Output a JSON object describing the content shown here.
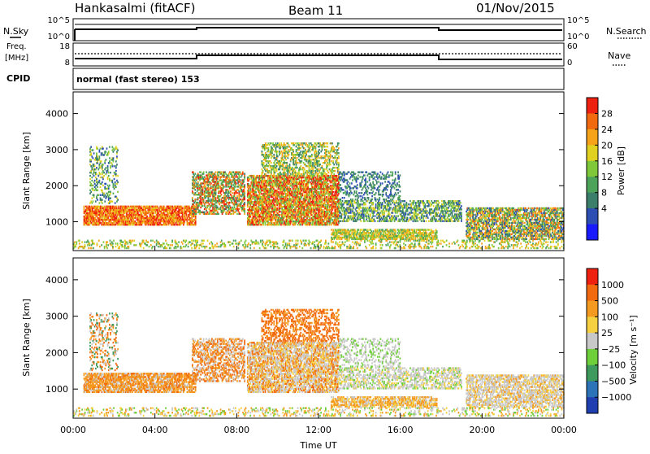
{
  "header": {
    "station": "Hankasalmi (fitACF)",
    "beam": "Beam 11",
    "date": "01/Nov/2015"
  },
  "strip_panels": {
    "nsky_label": "N.Sky",
    "nsky_ticks": [
      "10^5",
      "10^0"
    ],
    "nsearch_label": "N.Search",
    "nsearch_ticks": [
      "10^5",
      "10^0"
    ],
    "freq_label_1": "Freq.",
    "freq_label_2": "[MHz]",
    "freq_ticks": [
      "18",
      "8"
    ],
    "nave_label": "Nave",
    "nave_ticks": [
      "60",
      "0"
    ],
    "cpid_label": "CPID",
    "cpid_text": "normal (fast stereo) 153"
  },
  "chart_data": [
    {
      "type": "heatmap",
      "name": "power-panel",
      "ylabel": "Slant Range [km]",
      "y_ticks": [
        "4000",
        "3000",
        "2000",
        "1000"
      ],
      "ylim": [
        200,
        4600
      ],
      "xlim": [
        "00:00",
        "24:00"
      ],
      "colorbar": {
        "label": "Power [dB]",
        "ticks": [
          "28",
          "24",
          "20",
          "16",
          "12",
          "8",
          "4"
        ],
        "colors": [
          "#1a1aff",
          "#2d4fb3",
          "#3b7f6b",
          "#4ea35a",
          "#7ec83a",
          "#e0d020",
          "#f7a31a",
          "#f26a10",
          "#ee2010"
        ]
      }
    },
    {
      "type": "heatmap",
      "name": "velocity-panel",
      "ylabel": "Slant Range [km]",
      "y_ticks": [
        "4000",
        "3000",
        "2000",
        "1000"
      ],
      "ylim": [
        200,
        4600
      ],
      "xlim": [
        "00:00",
        "24:00"
      ],
      "xlabel": "Time UT",
      "x_ticks": [
        "00:00",
        "04:00",
        "08:00",
        "12:00",
        "16:00",
        "20:00",
        "00:00"
      ],
      "colorbar": {
        "label": "Velocity [m s⁻¹]",
        "ticks": [
          "1000",
          "500",
          "100",
          "25",
          "−25",
          "−100",
          "−500",
          "−1000"
        ],
        "colors": [
          "#1f3fb0",
          "#2d73b8",
          "#3d9a5c",
          "#6fcf3a",
          "#c8c8c8",
          "#f5d040",
          "#f59a20",
          "#f26a10",
          "#ee2010"
        ]
      }
    }
  ]
}
